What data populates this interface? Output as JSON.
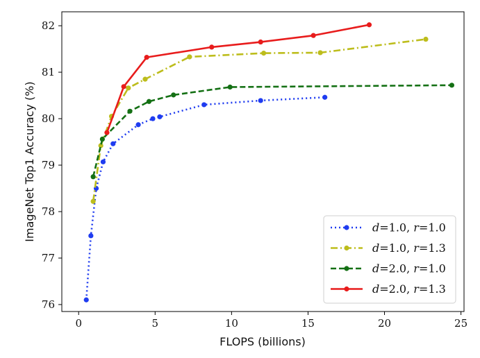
{
  "chart_data": {
    "type": "line",
    "title": "",
    "xlabel": "FLOPS (billions)",
    "ylabel": "ImageNet Top1 Accuracy (%)",
    "xlim": [
      -1.1,
      25.2
    ],
    "ylim": [
      75.85,
      82.3
    ],
    "xticks": [
      0,
      5,
      10,
      15,
      20,
      25
    ],
    "yticks": [
      76,
      77,
      78,
      79,
      80,
      81,
      82
    ],
    "xtick_labels": [
      "0",
      "5",
      "10",
      "15",
      "20",
      "25"
    ],
    "ytick_labels": [
      "76",
      "77",
      "78",
      "79",
      "80",
      "81",
      "82"
    ],
    "legend_position": "lower-right",
    "series": [
      {
        "name": "d=1.0, r=1.0",
        "legend_parts": [
          {
            "text": "d",
            "italic": true
          },
          {
            "text": "=1.0, ",
            "italic": false
          },
          {
            "text": "r",
            "italic": true
          },
          {
            "text": "=1.0",
            "italic": false
          }
        ],
        "color": "#1f3cf0",
        "linestyle": "dotted",
        "x": [
          0.5,
          0.8,
          1.15,
          1.6,
          2.25,
          3.9,
          4.85,
          5.3,
          8.2,
          11.9,
          16.1
        ],
        "y": [
          76.1,
          77.48,
          78.5,
          79.07,
          79.46,
          79.87,
          80.0,
          80.04,
          80.3,
          80.39,
          80.46
        ]
      },
      {
        "name": "d=1.0, r=1.3",
        "legend_parts": [
          {
            "text": "d",
            "italic": true
          },
          {
            "text": "=1.0, ",
            "italic": false
          },
          {
            "text": "r",
            "italic": true
          },
          {
            "text": "=1.3",
            "italic": false
          }
        ],
        "color": "#bdbd1c",
        "linestyle": "dashdot",
        "x": [
          0.95,
          1.45,
          2.15,
          3.25,
          4.35,
          7.25,
          12.1,
          15.8,
          22.7
        ],
        "y": [
          78.22,
          79.42,
          80.05,
          80.66,
          80.85,
          81.33,
          81.41,
          81.42,
          81.71
        ]
      },
      {
        "name": "d=2.0, r=1.0",
        "legend_parts": [
          {
            "text": "d",
            "italic": true
          },
          {
            "text": "=2.0, ",
            "italic": false
          },
          {
            "text": "r",
            "italic": true
          },
          {
            "text": "=1.0",
            "italic": false
          }
        ],
        "color": "#147014",
        "linestyle": "dashed",
        "x": [
          0.95,
          1.55,
          3.35,
          4.6,
          6.2,
          9.9,
          24.4
        ],
        "y": [
          78.75,
          79.56,
          80.16,
          80.37,
          80.51,
          80.68,
          80.72
        ]
      },
      {
        "name": "d=2.0, r=1.3",
        "legend_parts": [
          {
            "text": "d",
            "italic": true
          },
          {
            "text": "=2.0, ",
            "italic": false
          },
          {
            "text": "r",
            "italic": true
          },
          {
            "text": "=1.3",
            "italic": false
          }
        ],
        "color": "#e81c1c",
        "linestyle": "solid",
        "x": [
          1.85,
          2.95,
          4.45,
          8.7,
          11.9,
          15.35,
          19.0
        ],
        "y": [
          79.7,
          80.69,
          81.32,
          81.54,
          81.65,
          81.79,
          82.02
        ]
      }
    ]
  }
}
